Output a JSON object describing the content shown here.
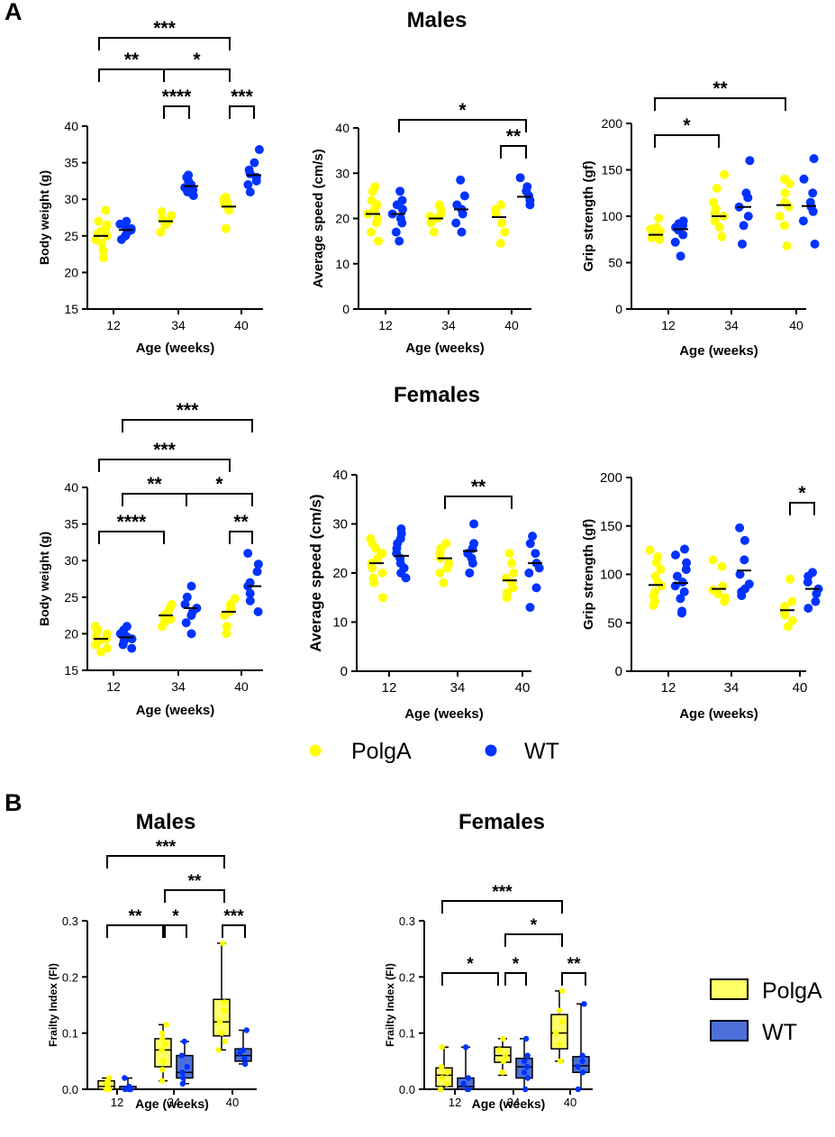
{
  "panels": {
    "a": "A",
    "b": "B"
  },
  "sections": {
    "males": "Males",
    "females": "Females"
  },
  "colors": {
    "polga": "#ffff00",
    "wt": "#0033ff",
    "polga_box": "#ffff66",
    "wt_box": "#4d6fd9",
    "median": "#000000"
  },
  "legend_scatter": {
    "polga": "PolgA",
    "wt": "WT"
  },
  "legend_box": {
    "polga": "PolgA",
    "wt": "WT"
  },
  "chart_data": [
    {
      "id": "a-m-weight",
      "type": "scatter",
      "title": "Males",
      "xlabel": "Age (weeks)",
      "ylabel": "Body weight (g)",
      "categories": [
        "12",
        "34",
        "40"
      ],
      "ylim": [
        15,
        40
      ],
      "yticks": [
        15,
        20,
        25,
        30,
        35,
        40
      ],
      "series": [
        {
          "name": "PolgA",
          "values": [
            [
              22,
              23,
              24,
              24.5,
              25,
              25.3,
              25.6,
              26,
              26.5,
              27,
              28.5
            ],
            [
              25.5,
              26.5,
              27,
              27.3,
              27.8,
              28.3
            ],
            [
              26,
              28.5,
              29,
              29.3,
              29.6,
              30,
              30.3
            ]
          ],
          "means": [
            25,
            27,
            29
          ]
        },
        {
          "name": "WT",
          "values": [
            [
              24.5,
              25,
              25.5,
              25.8,
              26,
              26.3,
              26.6,
              27
            ],
            [
              30.5,
              31,
              31.3,
              31.6,
              32,
              32.5,
              33,
              33.3
            ],
            [
              31,
              32,
              32.5,
              33,
              33.5,
              34,
              35,
              36.8
            ]
          ],
          "means": [
            25.8,
            31.8,
            33.3
          ]
        }
      ],
      "significance": [
        {
          "label": "***",
          "from": "PolgA 12",
          "to": "PolgA 40"
        },
        {
          "label": "**",
          "from": "PolgA 12",
          "to": "PolgA 34"
        },
        {
          "label": "*",
          "from": "PolgA 34",
          "to": "PolgA 40"
        },
        {
          "label": "****",
          "from": "PolgA 34",
          "to": "WT 34"
        },
        {
          "label": "***",
          "from": "PolgA 40",
          "to": "WT 40"
        }
      ]
    },
    {
      "id": "a-m-speed",
      "type": "scatter",
      "title": "Males",
      "xlabel": "Age (weeks)",
      "ylabel": "Average speed (cm/s)",
      "categories": [
        "12",
        "34",
        "40"
      ],
      "ylim": [
        0,
        40
      ],
      "yticks": [
        0,
        10,
        20,
        30,
        40
      ],
      "series": [
        {
          "name": "PolgA",
          "values": [
            [
              15,
              17,
              19,
              20,
              21,
              22,
              23,
              24,
              26,
              27
            ],
            [
              17,
              19,
              20,
              20.5,
              21,
              22,
              23
            ],
            [
              14.5,
              17,
              19,
              21,
              22,
              23
            ]
          ],
          "means": [
            21,
            20,
            20.3
          ]
        },
        {
          "name": "WT",
          "values": [
            [
              15,
              17,
              19,
              20,
              21,
              22,
              23,
              24,
              26
            ],
            [
              17,
              19,
              21,
              22,
              23,
              25,
              28.5
            ],
            [
              23,
              24,
              25,
              26,
              27,
              29
            ]
          ],
          "means": [
            21,
            22,
            24.8
          ]
        }
      ],
      "significance": [
        {
          "label": "*",
          "from": "WT 12",
          "to": "WT 40"
        },
        {
          "label": "**",
          "from": "PolgA 40",
          "to": "WT 40"
        }
      ]
    },
    {
      "id": "a-m-grip",
      "type": "scatter",
      "title": "Males",
      "xlabel": "Age (weeks)",
      "ylabel": "Grip strength (gf)",
      "categories": [
        "12",
        "34",
        "40"
      ],
      "ylim": [
        0,
        200
      ],
      "yticks": [
        0,
        50,
        100,
        150,
        200
      ],
      "series": [
        {
          "name": "PolgA",
          "values": [
            [
              75,
              77,
              78,
              80,
              82,
              84,
              86,
              88,
              98
            ],
            [
              78,
              88,
              95,
              100,
              103,
              108,
              115,
              130,
              145
            ],
            [
              68,
              90,
              100,
              110,
              115,
              125,
              135,
              140
            ]
          ],
          "means": [
            80,
            100,
            112
          ]
        },
        {
          "name": "WT",
          "values": [
            [
              57,
              72,
              80,
              85,
              88,
              90,
              92,
              95
            ],
            [
              70,
              90,
              100,
              110,
              120,
              125,
              160
            ],
            [
              70,
              95,
              105,
              110,
              115,
              125,
              140,
              162
            ]
          ],
          "means": [
            86,
            110,
            111
          ]
        }
      ],
      "significance": [
        {
          "label": "**",
          "from": "PolgA 12",
          "to": "PolgA 40"
        },
        {
          "label": "*",
          "from": "PolgA 12",
          "to": "PolgA 34"
        }
      ]
    },
    {
      "id": "a-f-weight",
      "type": "scatter",
      "title": "Females",
      "xlabel": "Age (weeks)",
      "ylabel": "Body weight (g)",
      "categories": [
        "12",
        "34",
        "40"
      ],
      "ylim": [
        15,
        40
      ],
      "yticks": [
        15,
        20,
        25,
        30,
        35,
        40
      ],
      "series": [
        {
          "name": "PolgA",
          "values": [
            [
              17.5,
              18,
              18.5,
              19,
              19.3,
              19.6,
              20,
              20.3,
              20.6,
              21
            ],
            [
              21,
              21.5,
              22,
              22.5,
              23,
              23.5,
              24
            ],
            [
              20,
              21,
              22.5,
              23,
              23.5,
              24,
              24.8
            ]
          ],
          "means": [
            19.3,
            22.5,
            23
          ]
        },
        {
          "name": "WT",
          "values": [
            [
              18,
              18.5,
              19,
              19.3,
              19.6,
              20,
              20.5,
              21
            ],
            [
              20,
              21.5,
              22.5,
              23,
              23.5,
              24,
              25,
              26.5
            ],
            [
              23,
              24.5,
              25.5,
              26.5,
              27,
              28.5,
              29.5,
              31
            ]
          ],
          "means": [
            19.5,
            23.5,
            26.5
          ]
        }
      ],
      "significance": [
        {
          "label": "***",
          "from": "WT 12",
          "to": "WT 40"
        },
        {
          "label": "***",
          "from": "PolgA 12",
          "to": "PolgA 40"
        },
        {
          "label": "**",
          "from": "WT 12",
          "to": "WT 34"
        },
        {
          "label": "*",
          "from": "WT 34",
          "to": "WT 40"
        },
        {
          "label": "****",
          "from": "PolgA 12",
          "to": "PolgA 34"
        },
        {
          "label": "**",
          "from": "PolgA 40",
          "to": "WT 40"
        }
      ]
    },
    {
      "id": "a-f-speed",
      "type": "scatter",
      "title": "Females",
      "xlabel": "Age (weeks)",
      "ylabel": "Average speed (cm/s)",
      "categories": [
        "12",
        "34",
        "40"
      ],
      "ylim": [
        0,
        40
      ],
      "yticks": [
        0,
        10,
        20,
        30,
        40
      ],
      "series": [
        {
          "name": "PolgA",
          "values": [
            [
              15,
              18,
              19,
              20,
              21,
              22,
              23,
              24,
              25,
              26,
              27
            ],
            [
              18,
              20,
              21,
              22,
              23,
              24,
              25,
              26
            ],
            [
              15,
              16,
              17,
              18,
              19,
              20,
              22,
              24
            ]
          ],
          "means": [
            22,
            23,
            18.5
          ]
        },
        {
          "name": "WT",
          "values": [
            [
              19,
              20,
              21,
              22,
              23,
              24,
              25,
              26,
              27,
              28,
              29
            ],
            [
              20,
              22,
              23,
              24,
              25,
              26,
              30
            ],
            [
              13,
              17,
              20,
              21,
              22,
              24,
              26,
              27.5
            ]
          ],
          "means": [
            23.5,
            24.5,
            22
          ]
        }
      ],
      "significance": [
        {
          "label": "**",
          "from": "PolgA 34",
          "to": "PolgA 40"
        }
      ]
    },
    {
      "id": "a-f-grip",
      "type": "scatter",
      "title": "Females",
      "xlabel": "Age (weeks)",
      "ylabel": "Grip strength (gf)",
      "categories": [
        "12",
        "34",
        "40"
      ],
      "ylim": [
        0,
        200
      ],
      "yticks": [
        0,
        50,
        100,
        150,
        200
      ],
      "series": [
        {
          "name": "PolgA",
          "values": [
            [
              68,
              72,
              78,
              82,
              88,
              92,
              98,
              105,
              112,
              118,
              125
            ],
            [
              72,
              76,
              80,
              84,
              88,
              108,
              115
            ],
            [
              46,
              52,
              58,
              62,
              67,
              72,
              95
            ]
          ],
          "means": [
            89,
            85,
            63
          ]
        },
        {
          "name": "WT",
          "values": [
            [
              60,
              62,
              75,
              82,
              88,
              92,
              98,
              105,
              112,
              120,
              126
            ],
            [
              78,
              82,
              85,
              90,
              100,
              115,
              135,
              148
            ],
            [
              65,
              72,
              80,
              85,
              92,
              98,
              102
            ]
          ],
          "means": [
            91,
            104,
            85
          ]
        }
      ],
      "significance": [
        {
          "label": "*",
          "from": "PolgA 40",
          "to": "WT 40"
        }
      ]
    },
    {
      "id": "b-m-frailty",
      "type": "box",
      "title": "Males",
      "xlabel": "Age (weeks)",
      "ylabel": "Frailty Index (FI)",
      "categories": [
        "12",
        "34",
        "40"
      ],
      "ylim": [
        0,
        0.3
      ],
      "yticks": [
        "0.0",
        "0.1",
        "0.2",
        "0.3"
      ],
      "series": [
        {
          "name": "PolgA",
          "boxes": [
            {
              "min": 0,
              "q1": 0,
              "median": 0.005,
              "q3": 0.015,
              "max": 0.02,
              "points": [
                0,
                0,
                0.005,
                0.01,
                0.015,
                0.02
              ]
            },
            {
              "min": 0.015,
              "q1": 0.04,
              "median": 0.07,
              "q3": 0.09,
              "max": 0.115,
              "points": [
                0.015,
                0.035,
                0.05,
                0.07,
                0.08,
                0.09,
                0.1,
                0.115
              ]
            },
            {
              "min": 0.07,
              "q1": 0.095,
              "median": 0.12,
              "q3": 0.16,
              "max": 0.26,
              "points": [
                0.07,
                0.085,
                0.1,
                0.12,
                0.14,
                0.155,
                0.26
              ]
            }
          ]
        },
        {
          "name": "WT",
          "boxes": [
            {
              "min": 0,
              "q1": 0,
              "median": 0,
              "q3": 0.005,
              "max": 0.02,
              "points": [
                0,
                0,
                0,
                0.005,
                0.02
              ]
            },
            {
              "min": 0.01,
              "q1": 0.02,
              "median": 0.03,
              "q3": 0.06,
              "max": 0.085,
              "points": [
                0.01,
                0.02,
                0.03,
                0.04,
                0.06,
                0.085
              ]
            },
            {
              "min": 0.045,
              "q1": 0.05,
              "median": 0.06,
              "q3": 0.072,
              "max": 0.105,
              "points": [
                0.045,
                0.055,
                0.065,
                0.07,
                0.105
              ]
            }
          ]
        }
      ],
      "significance": [
        {
          "label": "***",
          "from": "PolgA 12",
          "to": "PolgA 40"
        },
        {
          "label": "**",
          "from": "PolgA 34",
          "to": "PolgA 40"
        },
        {
          "label": "**",
          "from": "PolgA 12",
          "to": "PolgA 34"
        },
        {
          "label": "*",
          "from": "PolgA 34",
          "to": "WT 34"
        },
        {
          "label": "***",
          "from": "PolgA 40",
          "to": "WT 40"
        }
      ]
    },
    {
      "id": "b-f-frailty",
      "type": "box",
      "title": "Females",
      "xlabel": "Age (weeks)",
      "ylabel": "Frailty Index (FI)",
      "categories": [
        "12",
        "34",
        "40"
      ],
      "ylim": [
        0,
        0.3
      ],
      "yticks": [
        "0.0",
        "0.1",
        "0.2",
        "0.3"
      ],
      "series": [
        {
          "name": "PolgA",
          "boxes": [
            {
              "min": 0,
              "q1": 0.005,
              "median": 0.025,
              "q3": 0.038,
              "max": 0.075,
              "points": [
                0,
                0.01,
                0.02,
                0.03,
                0.04,
                0.075
              ]
            },
            {
              "min": 0.025,
              "q1": 0.048,
              "median": 0.06,
              "q3": 0.075,
              "max": 0.09,
              "points": [
                0.03,
                0.05,
                0.06,
                0.07,
                0.09
              ]
            },
            {
              "min": 0.05,
              "q1": 0.072,
              "median": 0.1,
              "q3": 0.133,
              "max": 0.175,
              "points": [
                0.05,
                0.08,
                0.1,
                0.12,
                0.14,
                0.175
              ]
            }
          ]
        },
        {
          "name": "WT",
          "boxes": [
            {
              "min": 0,
              "q1": 0,
              "median": 0.005,
              "q3": 0.02,
              "max": 0.075,
              "points": [
                0,
                0,
                0.01,
                0.02,
                0.075
              ]
            },
            {
              "min": 0,
              "q1": 0.02,
              "median": 0.04,
              "q3": 0.055,
              "max": 0.09,
              "points": [
                0,
                0.02,
                0.03,
                0.04,
                0.05,
                0.06,
                0.09
              ]
            },
            {
              "min": 0,
              "q1": 0.03,
              "median": 0.042,
              "q3": 0.058,
              "max": 0.152,
              "points": [
                0,
                0.03,
                0.04,
                0.05,
                0.06,
                0.152
              ]
            }
          ]
        }
      ],
      "significance": [
        {
          "label": "***",
          "from": "PolgA 12",
          "to": "PolgA 40"
        },
        {
          "label": "*",
          "from": "PolgA 34",
          "to": "PolgA 40"
        },
        {
          "label": "*",
          "from": "PolgA 12",
          "to": "PolgA 34"
        },
        {
          "label": "*",
          "from": "PolgA 34",
          "to": "WT 34"
        },
        {
          "label": "**",
          "from": "PolgA 40",
          "to": "WT 40"
        }
      ]
    }
  ]
}
